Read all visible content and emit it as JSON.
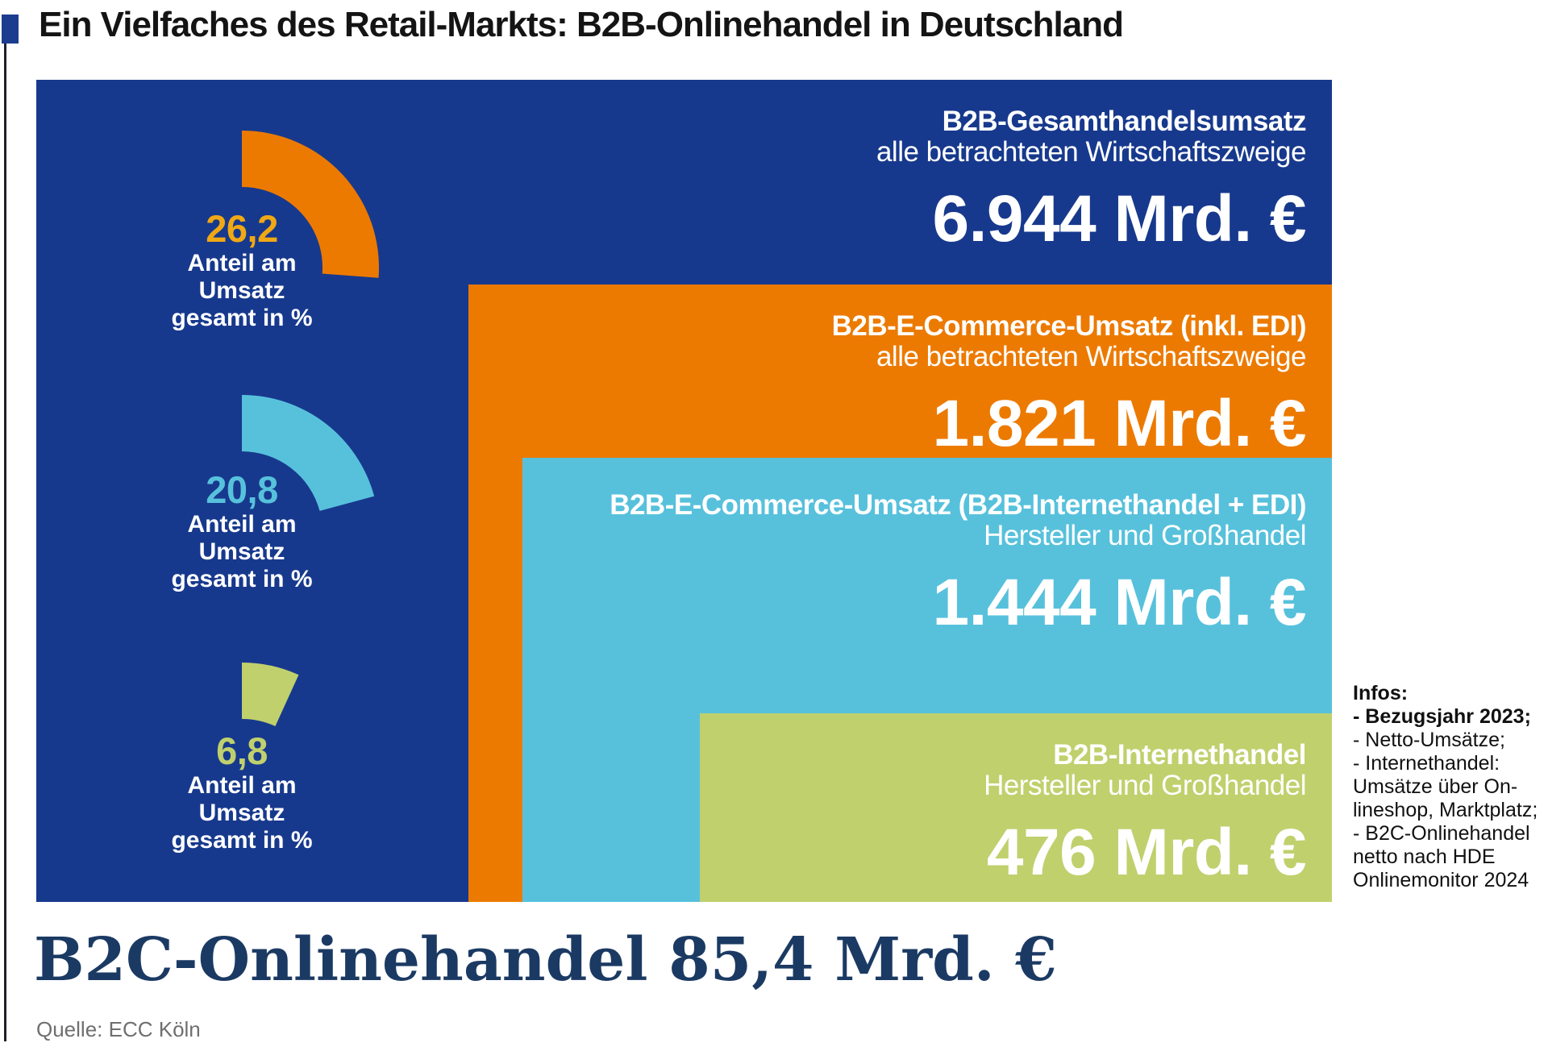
{
  "title": {
    "text": "Ein Vielfaches des Retail-Markts: B2B-Onlinehandel in Deutschland"
  },
  "colors": {
    "navy": "#17398d",
    "orange": "#ec7a00",
    "cyan": "#57c1dc",
    "green": "#c0d06d",
    "gold_number": "#f0a814",
    "b2c_navy": "#1b3a63",
    "source_gray": "#6f6f6f"
  },
  "boxes": [
    {
      "heading": "B2B-Gesamthandelsumsatz",
      "subheading": "alle betrachteten Wirtschaftszweige",
      "value": "6.944 Mrd. €",
      "value_mrd_eur": 6944,
      "color": "#17398d"
    },
    {
      "heading": "B2B-E-Commerce-Umsatz (inkl. EDI)",
      "subheading": "alle betrachteten Wirtschaftszweige",
      "value": "1.821 Mrd. €",
      "value_mrd_eur": 1821,
      "color": "#ec7a00"
    },
    {
      "heading": "B2B-E-Commerce-Umsatz (B2B-Internethandel + EDI)",
      "subheading": "Hersteller und Großhandel",
      "value": "1.444 Mrd. €",
      "value_mrd_eur": 1444,
      "color": "#57c1dc"
    },
    {
      "heading": "B2B-Internethandel",
      "subheading": "Hersteller und Großhandel",
      "value": "476 Mrd. €",
      "value_mrd_eur": 476,
      "color": "#c0d06d"
    }
  ],
  "donuts": [
    {
      "value_label": "26,2",
      "pct": 26.2,
      "lines": [
        "Anteil am",
        "Umsatz",
        "gesamt in %"
      ],
      "color": "#ec7a00",
      "number_color": "#f0a814"
    },
    {
      "value_label": "20,8",
      "pct": 20.8,
      "lines": [
        "Anteil am",
        "Umsatz",
        "gesamt in %"
      ],
      "color": "#57c1dc",
      "number_color": "#57c1dc"
    },
    {
      "value_label": "6,8",
      "pct": 6.8,
      "lines": [
        "Anteil am",
        "Umsatz",
        "gesamt in %"
      ],
      "color": "#c0d06d",
      "number_color": "#c0d06d"
    }
  ],
  "infos": {
    "heading": "Infos:",
    "lines": [
      {
        "text": "- Bezugsjahr 2023;",
        "bold": true
      },
      {
        "text": "- Netto-Umsätze;",
        "bold": false
      },
      {
        "text": "-  Internethandel:",
        "bold": false
      },
      {
        "text": "Umsätze über On-",
        "bold": false
      },
      {
        "text": "lineshop, Marktplatz;",
        "bold": false
      },
      {
        "text": "- B2C-Onlinehandel",
        "bold": false
      },
      {
        "text": "netto nach HDE",
        "bold": false
      },
      {
        "text": "Onlinemonitor 2024",
        "bold": false
      }
    ]
  },
  "footer": {
    "b2c_text": "B2C-Onlinehandel 85,4 Mrd. €",
    "source": "Quelle: ECC Köln"
  },
  "chart_data": {
    "type": "area",
    "title": "Ein Vielfaches des Retail-Markts: B2B-Onlinehandel in Deutschland",
    "subtype": "nested-proportional-rectangles-with-share-donuts",
    "series": [
      {
        "name": "B2B-Gesamthandelsumsatz, alle betrachteten Wirtschaftszweige",
        "value_mrd_eur": 6944,
        "share_of_total_pct": null
      },
      {
        "name": "B2B-E-Commerce-Umsatz (inkl. EDI), alle betrachteten Wirtschaftszweige",
        "value_mrd_eur": 1821,
        "share_of_total_pct": 26.2
      },
      {
        "name": "B2B-E-Commerce-Umsatz (B2B-Internethandel + EDI), Hersteller und Großhandel",
        "value_mrd_eur": 1444,
        "share_of_total_pct": 20.8
      },
      {
        "name": "B2B-Internethandel, Hersteller und Großhandel",
        "value_mrd_eur": 476,
        "share_of_total_pct": 6.8
      },
      {
        "name": "B2C-Onlinehandel",
        "value_mrd_eur": 85.4,
        "share_of_total_pct": null
      }
    ],
    "donut_unit_label": "Anteil am Umsatz gesamt in %",
    "legend_position": "none",
    "source": "Quelle: ECC Köln"
  }
}
